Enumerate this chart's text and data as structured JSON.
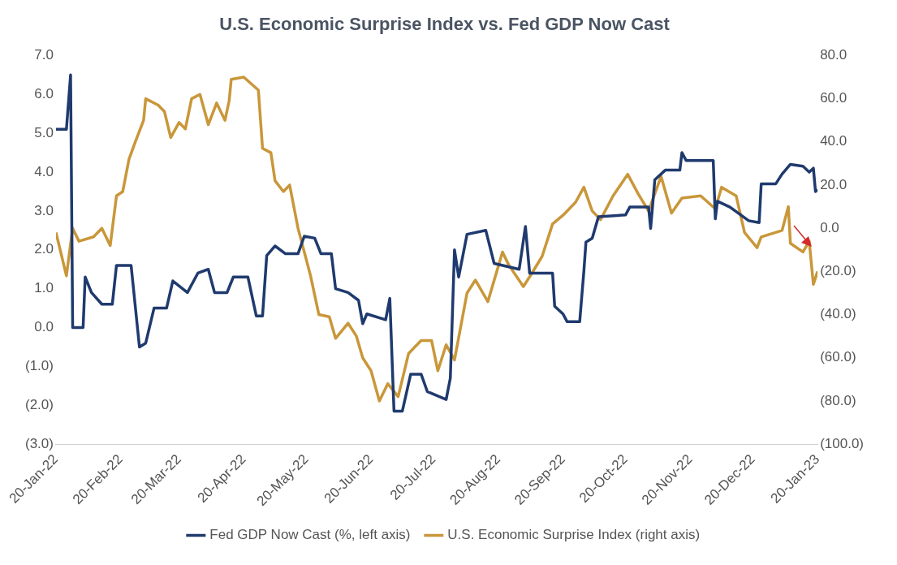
{
  "chart_data": {
    "type": "line",
    "title": "U.S. Economic Surprise Index vs. Fed GDP Now Cast",
    "legend": "bottom",
    "grid": false,
    "marker": "none",
    "line_style": "solid",
    "xlim": [
      "2022-01-20",
      "2023-01-20"
    ],
    "xticks": [
      {
        "value": "2022-01-20",
        "label": "20-Jan-22"
      },
      {
        "value": "2022-02-20",
        "label": "20-Feb-22"
      },
      {
        "value": "2022-03-20",
        "label": "20-Mar-22"
      },
      {
        "value": "2022-04-20",
        "label": "20-Apr-22"
      },
      {
        "value": "2022-05-20",
        "label": "20-May-22"
      },
      {
        "value": "2022-06-20",
        "label": "20-Jun-22"
      },
      {
        "value": "2022-07-20",
        "label": "20-Jul-22"
      },
      {
        "value": "2022-08-20",
        "label": "20-Aug-22"
      },
      {
        "value": "2022-09-20",
        "label": "20-Sep-22"
      },
      {
        "value": "2022-10-20",
        "label": "20-Oct-22"
      },
      {
        "value": "2022-11-20",
        "label": "20-Nov-22"
      },
      {
        "value": "2022-12-20",
        "label": "20-Dec-22"
      },
      {
        "value": "2023-01-20",
        "label": "20-Jan-23"
      }
    ],
    "ylim": [
      -3,
      7
    ],
    "yticks": [
      {
        "value": 7,
        "label": "7.0"
      },
      {
        "value": 6,
        "label": "6.0"
      },
      {
        "value": 5,
        "label": "5.0"
      },
      {
        "value": 4,
        "label": "4.0"
      },
      {
        "value": 3,
        "label": "3.0"
      },
      {
        "value": 2,
        "label": "2.0"
      },
      {
        "value": 1,
        "label": "1.0"
      },
      {
        "value": 0,
        "label": "0.0"
      },
      {
        "value": -1,
        "label": "(1.0)"
      },
      {
        "value": -2,
        "label": "(2.0)"
      },
      {
        "value": -3,
        "label": "(3.0)"
      }
    ],
    "y2lim": [
      -100,
      80
    ],
    "y2ticks": [
      {
        "value": 80,
        "label": "80.0"
      },
      {
        "value": 60,
        "label": "60.0"
      },
      {
        "value": 40,
        "label": "40.0"
      },
      {
        "value": 20,
        "label": "20.0"
      },
      {
        "value": 0,
        "label": "0.0"
      },
      {
        "value": -20,
        "label": "(20.0)"
      },
      {
        "value": -40,
        "label": "(40.0)"
      },
      {
        "value": -60,
        "label": "(60.0)"
      },
      {
        "value": -80,
        "label": "(80.0)"
      },
      {
        "value": -100,
        "label": "(100.0)"
      }
    ],
    "series": [
      {
        "name": "Fed GDP Now Cast (%, left axis)",
        "color": "#1f3a6e",
        "axis": "y",
        "x": [
          "2022-01-20",
          "2022-01-25",
          "2022-01-27",
          "2022-01-28",
          "2022-02-02",
          "2022-02-03",
          "2022-02-06",
          "2022-02-11",
          "2022-02-16",
          "2022-02-18",
          "2022-02-25",
          "2022-03-01",
          "2022-03-04",
          "2022-03-08",
          "2022-03-14",
          "2022-03-17",
          "2022-03-24",
          "2022-03-29",
          "2022-04-03",
          "2022-04-06",
          "2022-04-12",
          "2022-04-15",
          "2022-04-22",
          "2022-04-26",
          "2022-04-29",
          "2022-05-01",
          "2022-05-05",
          "2022-05-10",
          "2022-05-16",
          "2022-05-19",
          "2022-05-24",
          "2022-05-27",
          "2022-06-01",
          "2022-06-03",
          "2022-06-09",
          "2022-06-14",
          "2022-06-16",
          "2022-06-18",
          "2022-06-27",
          "2022-06-29",
          "2022-07-01",
          "2022-07-05",
          "2022-07-09",
          "2022-07-14",
          "2022-07-17",
          "2022-07-26",
          "2022-07-28",
          "2022-07-30",
          "2022-08-01",
          "2022-08-05",
          "2022-08-14",
          "2022-08-18",
          "2022-08-30",
          "2022-09-02",
          "2022-09-04",
          "2022-09-15",
          "2022-09-16",
          "2022-09-20",
          "2022-09-22",
          "2022-09-28",
          "2022-09-30",
          "2022-10-01",
          "2022-10-04",
          "2022-10-07",
          "2022-10-20",
          "2022-10-22",
          "2022-10-31",
          "2022-11-01",
          "2022-11-03",
          "2022-11-08",
          "2022-11-15",
          "2022-11-16",
          "2022-11-18",
          "2022-12-01",
          "2022-12-02",
          "2022-12-03",
          "2022-12-09",
          "2022-12-18",
          "2022-12-23",
          "2022-12-24",
          "2022-12-31",
          "2023-01-03",
          "2023-01-07",
          "2023-01-13",
          "2023-01-16",
          "2023-01-18",
          "2023-01-19",
          "2023-01-20"
        ],
        "values": [
          5.1,
          5.1,
          6.5,
          0.0,
          0.0,
          1.3,
          0.9,
          0.6,
          0.6,
          1.6,
          1.6,
          -0.5,
          -0.4,
          0.5,
          0.5,
          1.2,
          0.9,
          1.4,
          1.5,
          0.9,
          0.9,
          1.3,
          1.3,
          0.3,
          0.3,
          1.85,
          2.1,
          1.9,
          1.9,
          2.35,
          2.3,
          1.9,
          1.9,
          1.0,
          0.9,
          0.7,
          0.1,
          0.35,
          0.2,
          0.75,
          -2.15,
          -2.15,
          -1.2,
          -1.2,
          -1.65,
          -1.85,
          -1.3,
          2.0,
          1.3,
          2.4,
          2.5,
          1.65,
          1.5,
          2.6,
          1.4,
          1.4,
          0.55,
          0.35,
          0.15,
          0.15,
          1.45,
          2.2,
          2.3,
          2.85,
          2.9,
          3.1,
          3.1,
          2.55,
          3.8,
          4.05,
          4.05,
          4.5,
          4.3,
          4.3,
          2.8,
          3.25,
          3.1,
          2.75,
          2.7,
          3.7,
          3.7,
          3.95,
          4.2,
          4.15,
          4.0,
          4.1,
          3.5,
          3.55
        ]
      },
      {
        "name": "U.S. Economic Surprise Index (right axis)",
        "color": "#c9973a",
        "axis": "y2",
        "x": [
          "2022-01-20",
          "2022-01-25",
          "2022-01-28",
          "2022-01-31",
          "2022-02-07",
          "2022-02-11",
          "2022-02-15",
          "2022-02-18",
          "2022-02-21",
          "2022-02-24",
          "2022-02-27",
          "2022-03-03",
          "2022-03-04",
          "2022-03-10",
          "2022-03-13",
          "2022-03-16",
          "2022-03-20",
          "2022-03-23",
          "2022-03-26",
          "2022-03-30",
          "2022-04-03",
          "2022-04-07",
          "2022-04-11",
          "2022-04-13",
          "2022-04-14",
          "2022-04-20",
          "2022-04-27",
          "2022-04-29",
          "2022-05-03",
          "2022-05-05",
          "2022-05-09",
          "2022-05-12",
          "2022-05-16",
          "2022-05-22",
          "2022-05-26",
          "2022-05-31",
          "2022-06-03",
          "2022-06-09",
          "2022-06-13",
          "2022-06-16",
          "2022-06-20",
          "2022-06-24",
          "2022-06-28",
          "2022-07-03",
          "2022-07-08",
          "2022-07-14",
          "2022-07-19",
          "2022-07-22",
          "2022-07-26",
          "2022-07-30",
          "2022-08-05",
          "2022-08-09",
          "2022-08-15",
          "2022-08-22",
          "2022-08-25",
          "2022-09-01",
          "2022-09-05",
          "2022-09-10",
          "2022-09-15",
          "2022-09-20",
          "2022-09-26",
          "2022-09-30",
          "2022-10-04",
          "2022-10-08",
          "2022-10-14",
          "2022-10-21",
          "2022-10-26",
          "2022-10-31",
          "2022-11-06",
          "2022-11-11",
          "2022-11-16",
          "2022-11-25",
          "2022-12-02",
          "2022-12-05",
          "2022-12-12",
          "2022-12-16",
          "2022-12-22",
          "2022-12-24",
          "2023-01-03",
          "2023-01-06",
          "2023-01-07",
          "2023-01-13",
          "2023-01-16",
          "2023-01-18",
          "2023-01-20"
        ],
        "values": [
          -2,
          -22,
          0,
          -6,
          -4,
          0,
          -8,
          15,
          17,
          32,
          40,
          50,
          60,
          57,
          54,
          42,
          49,
          46,
          60,
          62,
          48,
          58,
          50,
          59,
          69,
          70,
          64,
          37,
          35,
          22,
          17,
          20,
          0,
          -22,
          -40,
          -41,
          -51,
          -44,
          -50,
          -60,
          -66,
          -80,
          -72,
          -78,
          -58,
          -52,
          -52,
          -66,
          -54,
          -61,
          -30,
          -24,
          -34,
          -11,
          -17,
          -27,
          -21,
          -13,
          2,
          6,
          12,
          19,
          8,
          4,
          15,
          25,
          16,
          8,
          24,
          7,
          14,
          15,
          9,
          19,
          15,
          -2,
          -9,
          -4,
          -1,
          10,
          -7,
          -11,
          -6,
          -26,
          -20
        ]
      }
    ]
  }
}
